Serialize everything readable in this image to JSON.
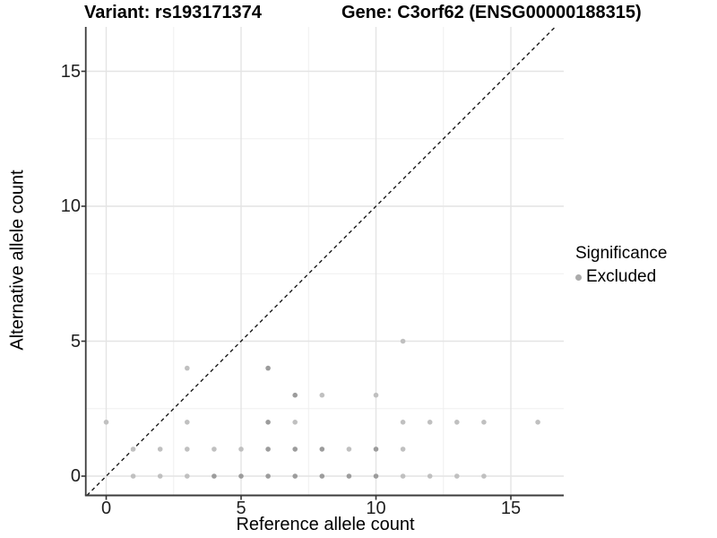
{
  "titles": {
    "variant": "Variant: rs193171374",
    "gene": "Gene: C3orf62 (ENSG00000188315)"
  },
  "chart_data": {
    "type": "scatter",
    "xlabel": "Reference allele count",
    "ylabel": "Alternative allele count",
    "x_tick_labels": [
      "0",
      "5",
      "10",
      "15"
    ],
    "y_tick_labels": [
      "0",
      "5",
      "10",
      "15"
    ],
    "x_tick_values": [
      0,
      5,
      10,
      15
    ],
    "y_tick_values": [
      0,
      5,
      10,
      15
    ],
    "x_minor_values": [
      2.5,
      7.5,
      12.5
    ],
    "y_minor_values": [
      2.5,
      7.5,
      12.5
    ],
    "xlim": [
      -0.85,
      17.05
    ],
    "ylim": [
      -0.75,
      16.65
    ],
    "grid": true,
    "identity_line": {
      "slope": 1,
      "intercept": 0,
      "style": "dashed",
      "color": "#1a1a1a"
    },
    "series": [
      {
        "name": "Excluded",
        "marker": "circle",
        "color_light": "#c0c0c0",
        "color_dark": "#9c9c9c",
        "points": [
          [
            1,
            0,
            "l"
          ],
          [
            2,
            0,
            "l"
          ],
          [
            3,
            0,
            "l"
          ],
          [
            4,
            0,
            "d"
          ],
          [
            5,
            0,
            "d"
          ],
          [
            6,
            0,
            "d"
          ],
          [
            7,
            0,
            "d"
          ],
          [
            8,
            0,
            "d"
          ],
          [
            9,
            0,
            "d"
          ],
          [
            10,
            0,
            "d"
          ],
          [
            11,
            0,
            "l"
          ],
          [
            12,
            0,
            "l"
          ],
          [
            13,
            0,
            "l"
          ],
          [
            14,
            0,
            "l"
          ],
          [
            1,
            1,
            "l"
          ],
          [
            2,
            1,
            "l"
          ],
          [
            3,
            1,
            "l"
          ],
          [
            4,
            1,
            "l"
          ],
          [
            5,
            1,
            "l"
          ],
          [
            6,
            1,
            "d"
          ],
          [
            7,
            1,
            "d"
          ],
          [
            8,
            1,
            "d"
          ],
          [
            9,
            1,
            "l"
          ],
          [
            10,
            1,
            "d"
          ],
          [
            11,
            1,
            "l"
          ],
          [
            0,
            2,
            "l"
          ],
          [
            3,
            2,
            "l"
          ],
          [
            6,
            2,
            "d"
          ],
          [
            7,
            2,
            "l"
          ],
          [
            11,
            2,
            "l"
          ],
          [
            12,
            2,
            "l"
          ],
          [
            13,
            2,
            "l"
          ],
          [
            14,
            2,
            "l"
          ],
          [
            16,
            2,
            "l"
          ],
          [
            7,
            3,
            "d"
          ],
          [
            8,
            3,
            "l"
          ],
          [
            10,
            3,
            "l"
          ],
          [
            3,
            4,
            "l"
          ],
          [
            6,
            4,
            "d"
          ],
          [
            11,
            5,
            "l"
          ]
        ]
      }
    ],
    "legend": {
      "title": "Significance",
      "position": "right",
      "items": [
        {
          "label": "Excluded",
          "color": "#ababab"
        }
      ]
    }
  },
  "colors": {
    "background": "#ffffff",
    "axis_line": "#3c3c3c",
    "tick_mark": "#333333",
    "grid_major": "#e4e4e4",
    "grid_minor": "#efefef"
  }
}
